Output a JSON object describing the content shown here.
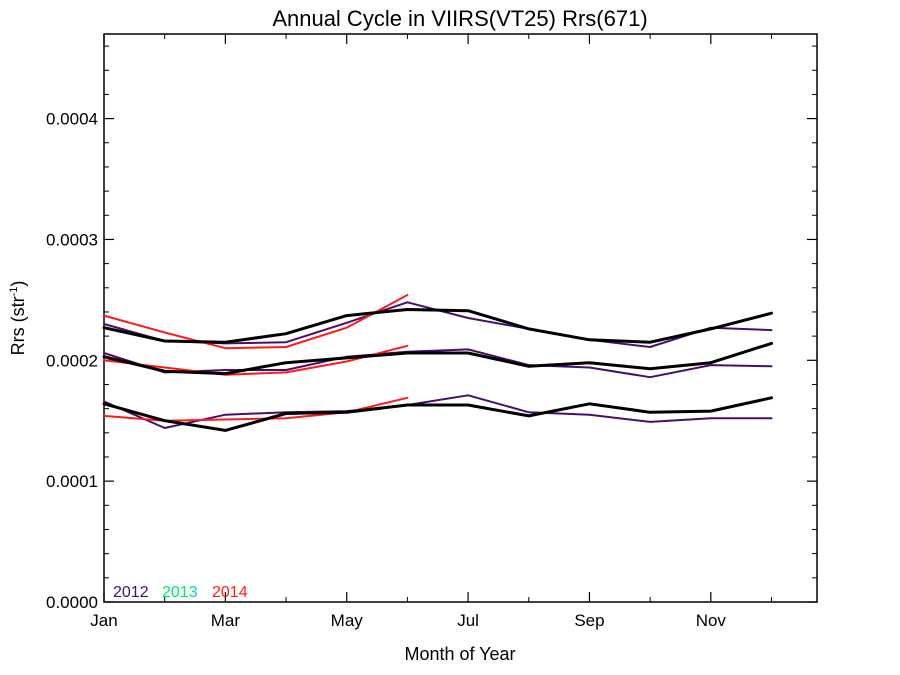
{
  "chart_data": {
    "type": "line",
    "title": "Annual Cycle in VIIRS(VT25) Rrs(671)",
    "xlabel": "Month of Year",
    "ylabel": "Rrs (str",
    "ylabel_sup": "-1",
    "ylabel_close": ")",
    "xlim": [
      1,
      12.75
    ],
    "ylim": [
      0.0,
      0.00047
    ],
    "x_ticks": [
      {
        "value": 1,
        "label": "Jan"
      },
      {
        "value": 3,
        "label": "Mar"
      },
      {
        "value": 5,
        "label": "May"
      },
      {
        "value": 7,
        "label": "Jul"
      },
      {
        "value": 9,
        "label": "Sep"
      },
      {
        "value": 11,
        "label": "Nov"
      }
    ],
    "y_ticks": [
      {
        "value": 0.0,
        "label": "0.0000"
      },
      {
        "value": 0.0001,
        "label": "0.0001"
      },
      {
        "value": 0.0002,
        "label": "0.0002"
      },
      {
        "value": 0.0003,
        "label": "0.0003"
      },
      {
        "value": 0.0004,
        "label": "0.0004"
      }
    ],
    "grid": false,
    "legend_position": "bottom-left",
    "legend": [
      {
        "label": "2012",
        "color": "#4b0d6b"
      },
      {
        "label": "2013",
        "color": "#00e676"
      },
      {
        "label": "2014",
        "color": "#ff1a1a"
      }
    ],
    "series": [
      {
        "color": "#4b0d6b",
        "width": 2,
        "x": [
          1,
          2,
          3,
          4,
          5,
          6,
          7,
          8,
          9,
          10,
          11,
          12
        ],
        "y": [
          0.00023,
          0.000216,
          0.000214,
          0.000215,
          0.000231,
          0.000248,
          0.000235,
          0.000226,
          0.000217,
          0.000211,
          0.000227,
          0.000225
        ]
      },
      {
        "color": "#4b0d6b",
        "width": 2,
        "x": [
          1,
          2,
          3,
          4,
          5,
          6,
          7,
          8,
          9,
          10,
          11,
          12
        ],
        "y": [
          0.000206,
          0.00019,
          0.000192,
          0.000192,
          0.000203,
          0.000207,
          0.000209,
          0.000196,
          0.000194,
          0.000186,
          0.000196,
          0.000195
        ]
      },
      {
        "color": "#4b0d6b",
        "width": 2,
        "x": [
          1,
          2,
          3,
          4,
          5,
          6,
          7,
          8,
          9,
          10,
          11,
          12
        ],
        "y": [
          0.000166,
          0.000144,
          0.000155,
          0.000157,
          0.000158,
          0.000163,
          0.000171,
          0.000157,
          0.000155,
          0.000149,
          0.000152,
          0.000152
        ]
      },
      {
        "color": "#ff1a1a",
        "width": 2,
        "x": [
          1,
          2,
          3,
          4,
          5,
          6
        ],
        "y": [
          0.000237,
          0.000223,
          0.00021,
          0.000211,
          0.000227,
          0.000254
        ]
      },
      {
        "color": "#ff1a1a",
        "width": 2,
        "x": [
          1,
          2,
          3,
          4,
          5,
          6
        ],
        "y": [
          0.0002,
          0.000194,
          0.000188,
          0.00019,
          0.000199,
          0.000212
        ]
      },
      {
        "color": "#ff1a1a",
        "width": 2,
        "x": [
          1,
          2,
          3,
          4,
          5,
          6
        ],
        "y": [
          0.000154,
          0.00015,
          0.000151,
          0.000152,
          0.000157,
          0.000169
        ]
      },
      {
        "color": "#000000",
        "width": 3,
        "x": [
          1,
          2,
          3,
          4,
          5,
          6,
          7,
          8,
          9,
          10,
          11,
          12
        ],
        "y": [
          0.000227,
          0.000216,
          0.000215,
          0.000222,
          0.000237,
          0.000242,
          0.000241,
          0.000226,
          0.000217,
          0.000215,
          0.000226,
          0.000239
        ]
      },
      {
        "color": "#000000",
        "width": 3,
        "x": [
          1,
          2,
          3,
          4,
          5,
          6,
          7,
          8,
          9,
          10,
          11,
          12
        ],
        "y": [
          0.000203,
          0.000191,
          0.000189,
          0.000198,
          0.000202,
          0.000206,
          0.000206,
          0.000195,
          0.000198,
          0.000193,
          0.000198,
          0.000214
        ]
      },
      {
        "color": "#000000",
        "width": 3,
        "x": [
          1,
          2,
          3,
          4,
          5,
          6,
          7,
          8,
          9,
          10,
          11,
          12
        ],
        "y": [
          0.000164,
          0.00015,
          0.000142,
          0.000156,
          0.000157,
          0.000163,
          0.000163,
          0.000154,
          0.000164,
          0.000157,
          0.000158,
          0.000169
        ]
      }
    ]
  }
}
